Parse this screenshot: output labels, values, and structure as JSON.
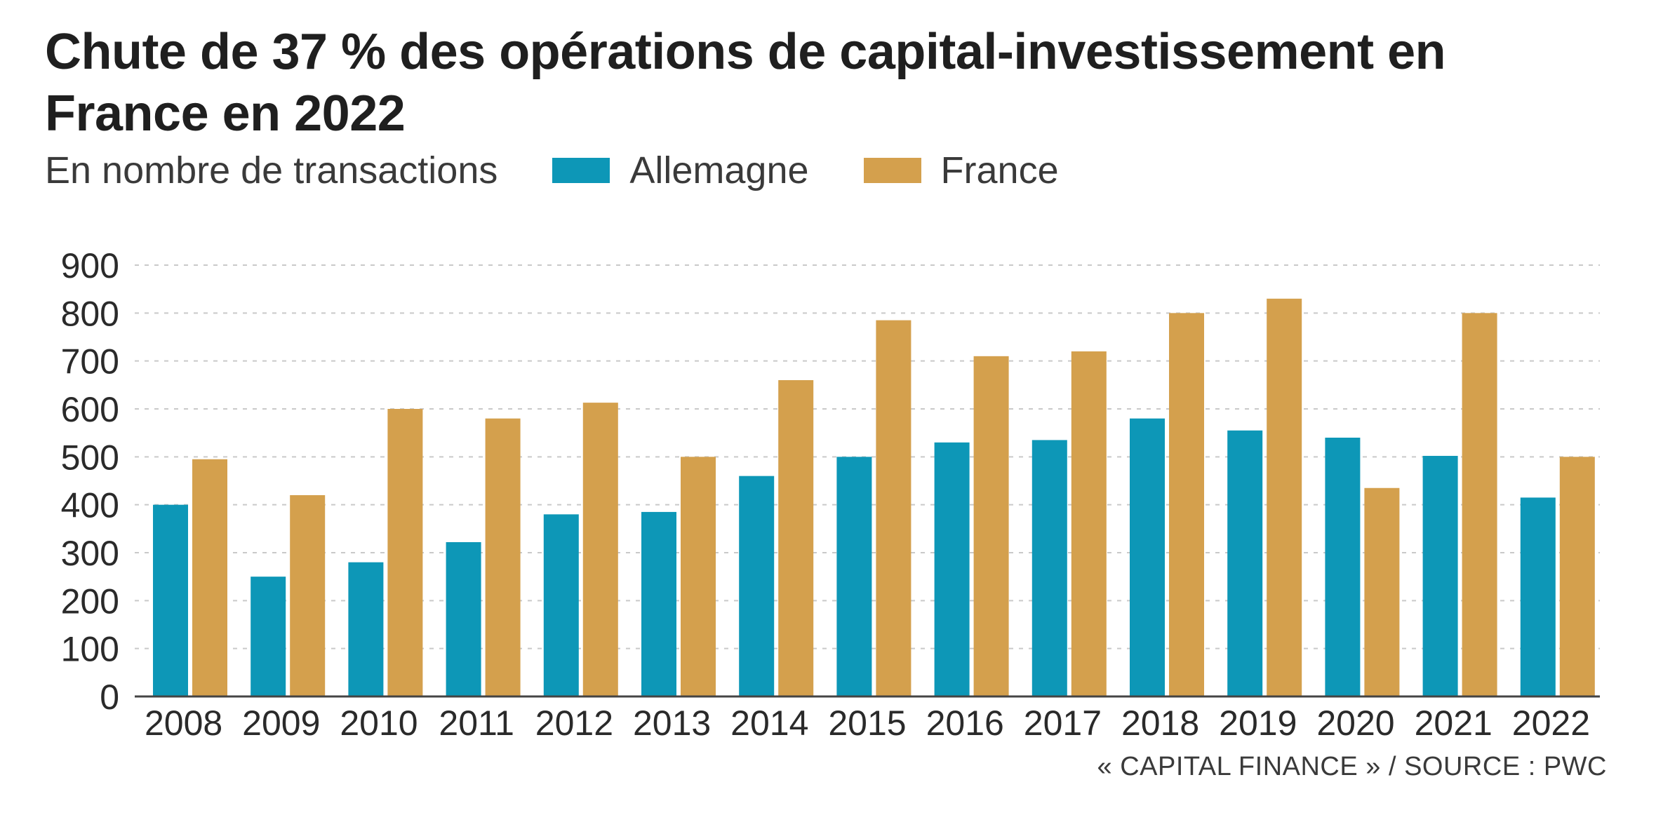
{
  "colors": {
    "allemagne": "#0d97b7",
    "france": "#d4a04d",
    "axis": "#444444",
    "grid": "#c9c9c9",
    "text": "#2a2a2a"
  },
  "header": {
    "title": "Chute de 37 % des opérations de capital-investissement en France en 2022",
    "subtitle": "En nombre de transactions"
  },
  "legend": [
    {
      "label": "Allemagne"
    },
    {
      "label": "France"
    }
  ],
  "footer": {
    "source": "« CAPITAL FINANCE » / SOURCE : PWC"
  },
  "chart_data": {
    "type": "bar",
    "title": "Chute de 37 % des opérations de capital-investissement en France en 2022",
    "ylabel": "En nombre de transactions",
    "xlabel": "",
    "ylim": [
      0,
      900
    ],
    "yticks": [
      0,
      100,
      200,
      300,
      400,
      500,
      600,
      700,
      800,
      900
    ],
    "grid": true,
    "legend_position": "top",
    "categories": [
      "2008",
      "2009",
      "2010",
      "2011",
      "2012",
      "2013",
      "2014",
      "2015",
      "2016",
      "2017",
      "2018",
      "2019",
      "2020",
      "2021",
      "2022"
    ],
    "series": [
      {
        "name": "Allemagne",
        "values": [
          400,
          250,
          280,
          322,
          380,
          385,
          460,
          500,
          530,
          535,
          580,
          555,
          540,
          502,
          415
        ]
      },
      {
        "name": "France",
        "values": [
          495,
          420,
          600,
          580,
          613,
          500,
          660,
          785,
          710,
          720,
          800,
          830,
          435,
          800,
          500
        ]
      }
    ]
  }
}
